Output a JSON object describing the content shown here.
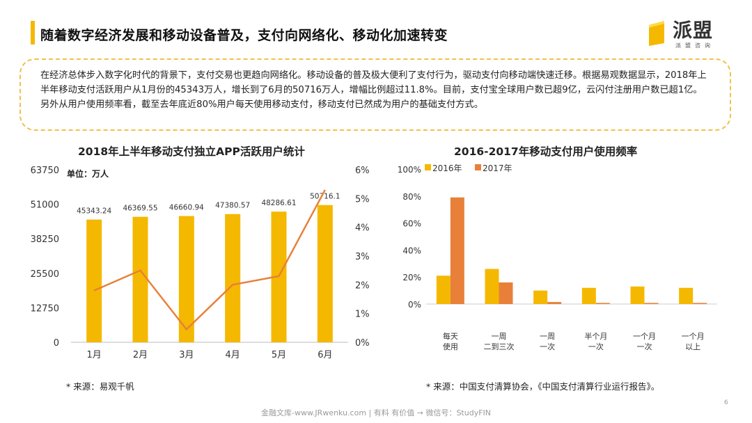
{
  "slide": {
    "title": "随着数字经济发展和移动设备普及，支付向网络化、移动化加速转变",
    "logo_text": "派盟",
    "logo_sub": "派盟咨询",
    "summary": "在经济总体步入数字化时代的背景下，支付交易也更趋向网络化。移动设备的普及极大便利了支付行为，驱动支付向移动端快速迁移。根据易观数据显示，2018年上半年移动支付活跃用户从1月份的45343万人，增长到了6月的50716万人，增幅比例超过11.8%。目前，支付宝全球用户数已超9亿，云闪付注册用户数已超1亿。另外从用户使用频率看，截至去年底近80%用户每天使用移动支付，移动支付已然成为用户的基础支付方式。",
    "footer": "金融文库-www.JRwenku.com | 有料 有价值 → 微信号：StudyFIN",
    "page_number": "6",
    "accent_color": "#f5b800"
  },
  "chart_data": [
    {
      "type": "bar",
      "title": "2018年上半年移动支付独立APP活跃用户统计",
      "unit_label": "单位：万人",
      "categories": [
        "1月",
        "2月",
        "3月",
        "4月",
        "5月",
        "6月"
      ],
      "series": [
        {
          "values": [
            45343.24,
            46369.55,
            46660.94,
            47380.57,
            48286.61,
            50716.1
          ],
          "labels": [
            "45343.24",
            "46369.55",
            "46660.94",
            "47380.57",
            "48286.61",
            "50716.1"
          ],
          "color": "#f5b800"
        },
        {
          "type": "line",
          "axis": "right",
          "values": [
            1.8,
            2.5,
            0.45,
            2.0,
            2.3,
            5.3
          ],
          "color": "#e8803a"
        }
      ],
      "y_left": {
        "lim": [
          0,
          63750
        ],
        "ticks": [
          "0",
          "12750",
          "25500",
          "38250",
          "51000",
          "63750"
        ]
      },
      "y_right": {
        "lim": [
          0,
          6
        ],
        "ticks": [
          "0%",
          "1%",
          "2%",
          "3%",
          "4%",
          "5%",
          "6%"
        ]
      },
      "grid": false,
      "source": "* 来源：易观千帆"
    },
    {
      "type": "bar",
      "title": "2016-2017年移动支付用户使用频率",
      "categories": [
        [
          "每天",
          "使用"
        ],
        [
          "一周",
          "二到三次"
        ],
        [
          "一周",
          "一次"
        ],
        [
          "半个月",
          "一次"
        ],
        [
          "一个月",
          "一次"
        ],
        [
          "一个月",
          "以上"
        ]
      ],
      "series": [
        {
          "name": "2016年",
          "values": [
            21,
            26,
            10,
            12,
            13,
            12
          ],
          "color": "#f5b800"
        },
        {
          "name": "2017年",
          "values": [
            79,
            16,
            1.5,
            0.8,
            0.8,
            0.8
          ],
          "color": "#e8803a"
        }
      ],
      "y": {
        "lim": [
          0,
          100
        ],
        "ticks": [
          "0%",
          "20%",
          "40%",
          "60%",
          "80%",
          "100%"
        ]
      },
      "legend": "top-left",
      "grid": false,
      "source": "* 来源：中国支付清算协会，《中国支付清算行业运行报告》。"
    }
  ]
}
